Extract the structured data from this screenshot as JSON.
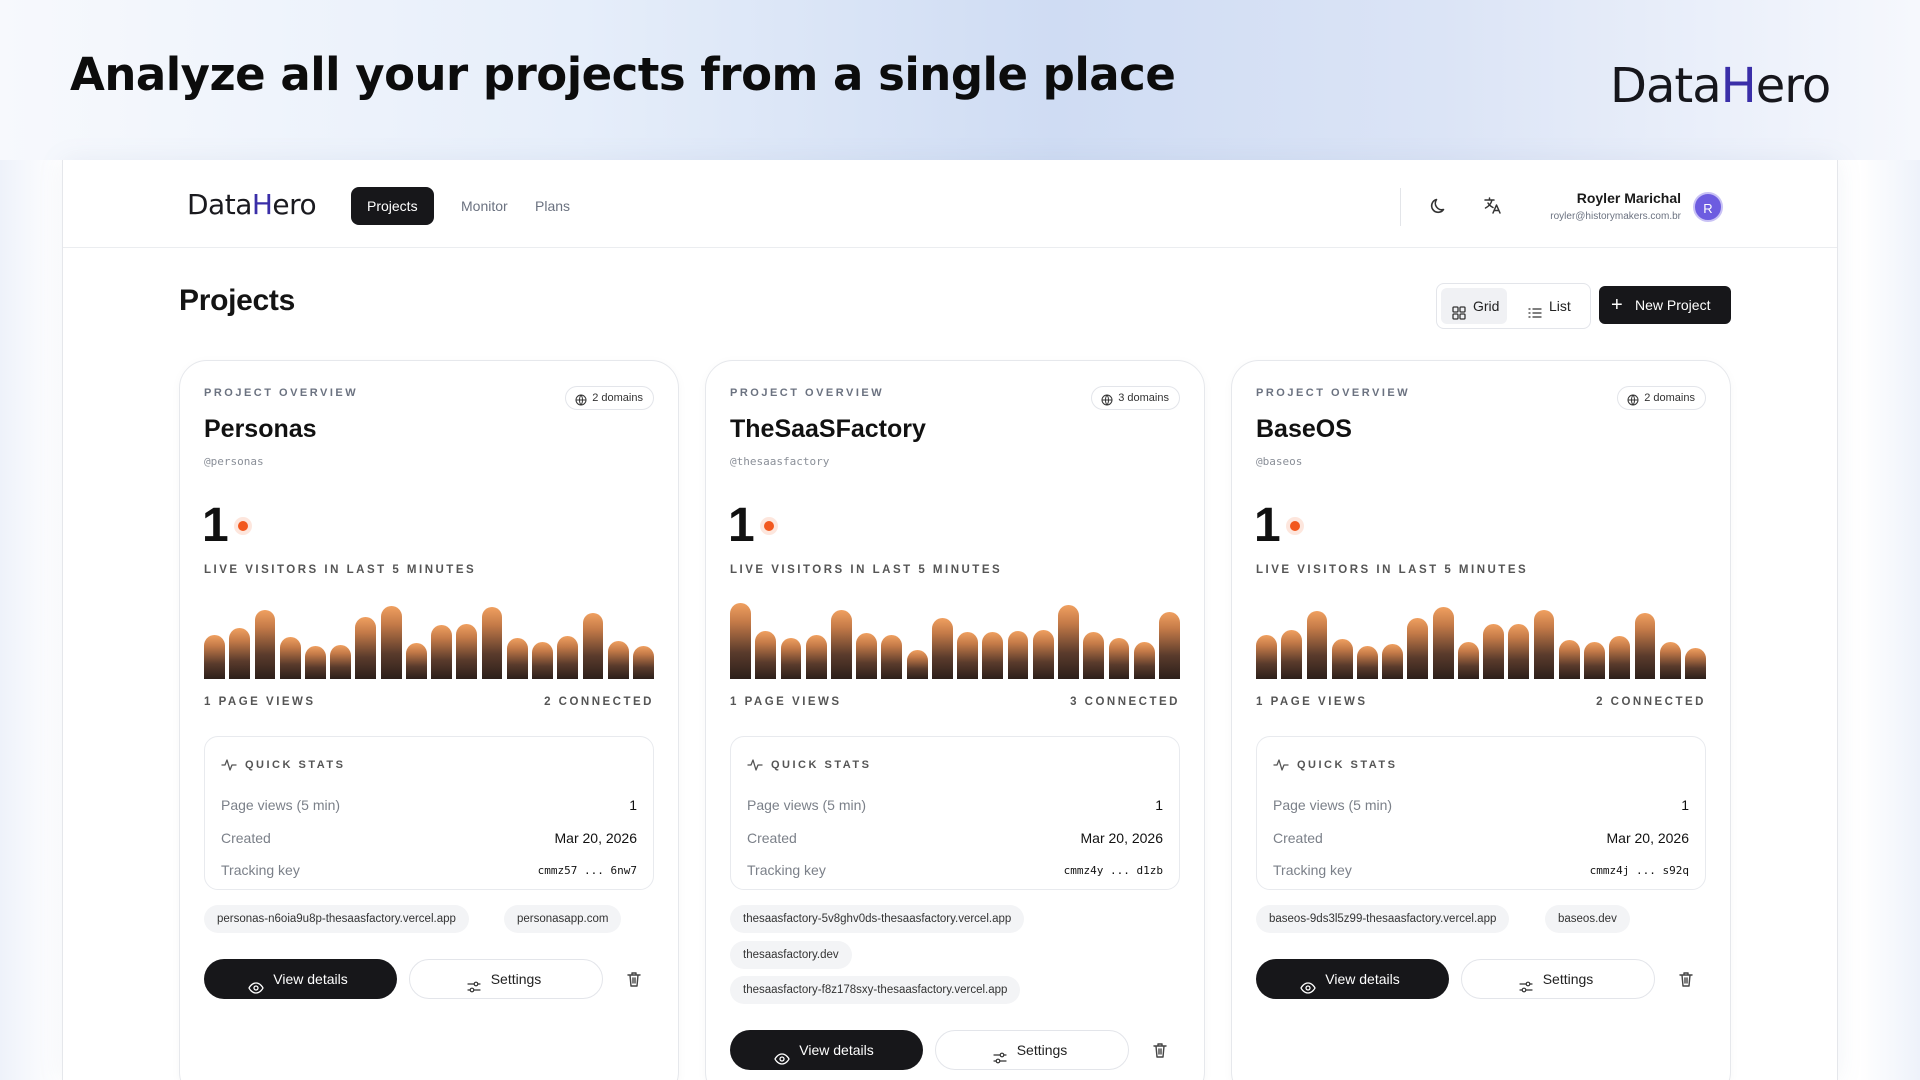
{
  "headline": "Analyze all your projects from a single place",
  "brand": {
    "pre": "Data",
    "hl": "H",
    "post": "ero"
  },
  "colors": {
    "accent": "#3a2ea8",
    "primary_button": "#17171a",
    "live_dot": "#f2581e",
    "avatar": "#6d5ce0"
  },
  "topbar": {
    "logo": {
      "pre": "Data",
      "hl": "H",
      "post": "ero"
    },
    "nav": [
      {
        "label": "Projects",
        "active": true
      },
      {
        "label": "Monitor",
        "active": false
      },
      {
        "label": "Plans",
        "active": false
      }
    ],
    "icons": [
      "moon-icon",
      "translate-icon"
    ],
    "user": {
      "name": "Royler Marichal",
      "email": "royler@historymakers.com.br",
      "avatar_initial": "R"
    }
  },
  "page": {
    "title": "Projects",
    "view_toggle": {
      "grid_label": "Grid",
      "list_label": "List",
      "selected": "Grid"
    },
    "new_project_label": "New Project"
  },
  "projects": [
    {
      "overline": "PROJECT OVERVIEW",
      "domains_badge": "2 domains",
      "name": "Personas",
      "handle": "@personas",
      "live_visitors": "1",
      "live_label": "LIVE VISITORS IN LAST 5 MINUTES",
      "activity": [
        0.57,
        0.66,
        0.89,
        0.54,
        0.42,
        0.43,
        0.8,
        0.94,
        0.46,
        0.69,
        0.71,
        0.92,
        0.52,
        0.48,
        0.55,
        0.85,
        0.49,
        0.42
      ],
      "page_views_label": "1 PAGE VIEWS",
      "connected_label": "2 CONNECTED",
      "quick_stats": {
        "title": "QUICK STATS",
        "rows": [
          {
            "label": "Page views (5 min)",
            "value": "1"
          },
          {
            "label": "Created",
            "value": "Mar 20, 2026"
          },
          {
            "label": "Tracking key",
            "value": "cmmz57 ... 6nw7"
          }
        ]
      },
      "domains": [
        "personas-n6oia9u8p-thesaasfactory.vercel.app",
        "personasapp.com"
      ],
      "view_details_label": "View details",
      "settings_label": "Settings"
    },
    {
      "overline": "PROJECT OVERVIEW",
      "domains_badge": "3 domains",
      "name": "TheSaaSFactory",
      "handle": "@thesaasfactory",
      "live_visitors": "1",
      "live_label": "LIVE VISITORS IN LAST 5 MINUTES",
      "activity": [
        0.98,
        0.62,
        0.52,
        0.56,
        0.89,
        0.59,
        0.56,
        0.37,
        0.78,
        0.6,
        0.6,
        0.61,
        0.63,
        0.95,
        0.6,
        0.52,
        0.48,
        0.86
      ],
      "page_views_label": "1 PAGE VIEWS",
      "connected_label": "3 CONNECTED",
      "quick_stats": {
        "title": "QUICK STATS",
        "rows": [
          {
            "label": "Page views (5 min)",
            "value": "1"
          },
          {
            "label": "Created",
            "value": "Mar 20, 2026"
          },
          {
            "label": "Tracking key",
            "value": "cmmz4y ... d1zb"
          }
        ]
      },
      "domains": [
        "thesaasfactory-5v8ghv0ds-thesaasfactory.vercel.app",
        "thesaasfactory.dev",
        "thesaasfactory-f8z178sxy-thesaasfactory.vercel.app"
      ],
      "view_details_label": "View details",
      "settings_label": "Settings"
    },
    {
      "overline": "PROJECT OVERVIEW",
      "domains_badge": "2 domains",
      "name": "BaseOS",
      "handle": "@baseos",
      "live_visitors": "1",
      "live_label": "LIVE VISITORS IN LAST 5 MINUTES",
      "activity": [
        0.56,
        0.63,
        0.87,
        0.51,
        0.42,
        0.45,
        0.78,
        0.92,
        0.47,
        0.7,
        0.7,
        0.88,
        0.5,
        0.48,
        0.55,
        0.84,
        0.48,
        0.4
      ],
      "page_views_label": "1 PAGE VIEWS",
      "connected_label": "2 CONNECTED",
      "quick_stats": {
        "title": "QUICK STATS",
        "rows": [
          {
            "label": "Page views (5 min)",
            "value": "1"
          },
          {
            "label": "Created",
            "value": "Mar 20, 2026"
          },
          {
            "label": "Tracking key",
            "value": "cmmz4j ... s92q"
          }
        ]
      },
      "domains": [
        "baseos-9ds3l5z99-thesaasfactory.vercel.app",
        "baseos.dev"
      ],
      "view_details_label": "View details",
      "settings_label": "Settings"
    }
  ]
}
